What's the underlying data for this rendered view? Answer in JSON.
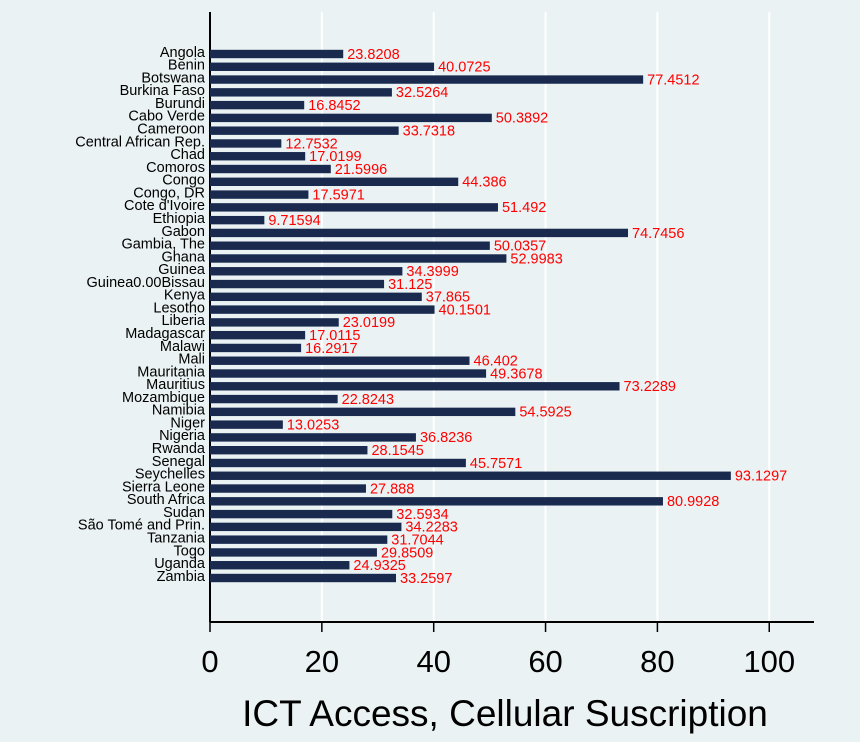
{
  "chart_data": {
    "type": "bar",
    "orientation": "horizontal",
    "x_label": "ICT Access, Cellular Suscription",
    "categories": [
      "Angola",
      "Benin",
      "Botswana",
      "Burkina Faso",
      "Burundi",
      "Cabo Verde",
      "Cameroon",
      "Central African Rep.",
      "Chad",
      "Comoros",
      "Congo",
      "Congo, DR",
      "Cote d'Ivoire",
      "Ethiopia",
      "Gabon",
      "Gambia, The",
      "Ghana",
      "Guinea",
      "Guinea0.00Bissau",
      "Kenya",
      "Lesotho",
      "Liberia",
      "Madagascar",
      "Malawi",
      "Mali",
      "Mauritania",
      "Mauritius",
      "Mozambique",
      "Namibia",
      "Niger",
      "Nigeria",
      "Rwanda",
      "Senegal",
      "Seychelles",
      "Sierra Leone",
      "South Africa",
      "Sudan",
      "São Tomé and Prin.",
      "Tanzania",
      "Togo",
      "Uganda",
      "Zambia"
    ],
    "values": [
      23.8208,
      40.0725,
      77.4512,
      32.5264,
      16.8452,
      50.3892,
      33.7318,
      12.7532,
      17.0199,
      21.5996,
      44.386,
      17.5971,
      51.492,
      9.71594,
      74.7456,
      50.0357,
      52.9983,
      34.3999,
      31.125,
      37.865,
      40.1501,
      23.0199,
      17.0115,
      16.2917,
      46.402,
      49.3678,
      73.2289,
      22.8243,
      54.5925,
      13.0253,
      36.8236,
      28.1545,
      45.7571,
      93.1297,
      27.888,
      80.9928,
      32.5934,
      34.2283,
      31.7044,
      29.8509,
      24.9325,
      33.2597
    ],
    "color": "#1a2a4f",
    "label_color": "#ff0000",
    "xlim": [
      0,
      108
    ],
    "xticks": [
      0,
      20,
      40,
      60,
      80,
      100
    ],
    "grid": true
  }
}
